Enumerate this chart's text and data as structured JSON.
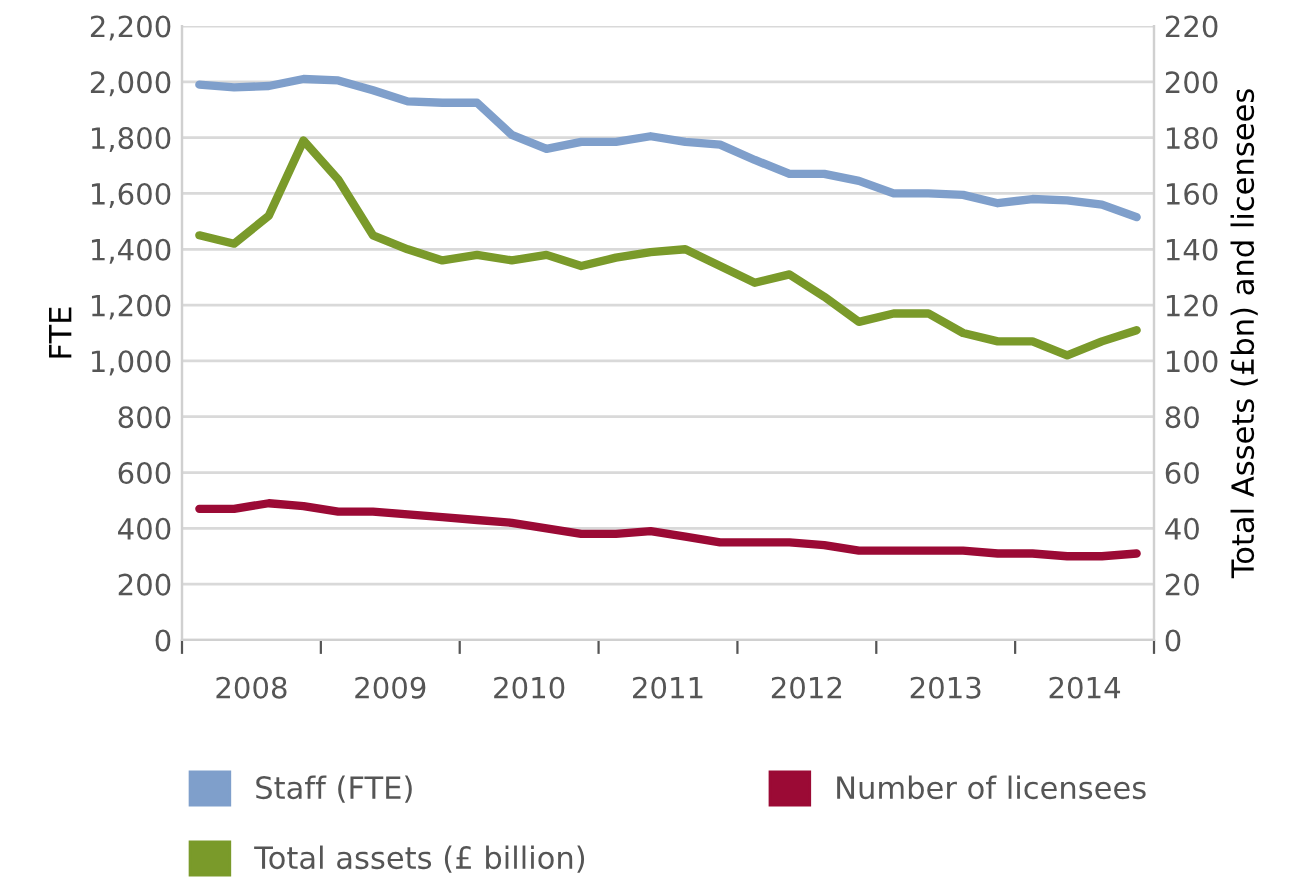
{
  "chart_data": {
    "type": "line",
    "x": [
      2008.125,
      2008.375,
      2008.625,
      2008.875,
      2009.125,
      2009.375,
      2009.625,
      2009.875,
      2010.125,
      2010.375,
      2010.625,
      2010.875,
      2011.125,
      2011.375,
      2011.625,
      2011.875,
      2012.125,
      2012.375,
      2012.625,
      2012.875,
      2013.125,
      2013.375,
      2013.625,
      2013.875,
      2014.125,
      2014.375,
      2014.625,
      2014.875
    ],
    "xlim": [
      2008,
      2015
    ],
    "xticks": [
      {
        "value": 2008,
        "label": null
      },
      {
        "value": 2008.5,
        "label": "2008"
      },
      {
        "value": 2009,
        "label": null
      },
      {
        "value": 2009.5,
        "label": "2009"
      },
      {
        "value": 2010,
        "label": null
      },
      {
        "value": 2010.5,
        "label": "2010"
      },
      {
        "value": 2011,
        "label": null
      },
      {
        "value": 2011.5,
        "label": "2011"
      },
      {
        "value": 2012,
        "label": null
      },
      {
        "value": 2012.5,
        "label": "2012"
      },
      {
        "value": 2013,
        "label": null
      },
      {
        "value": 2013.5,
        "label": "2013"
      },
      {
        "value": 2014,
        "label": null
      },
      {
        "value": 2014.5,
        "label": "2014"
      },
      {
        "value": 2015,
        "label": null
      }
    ],
    "series": [
      {
        "name": "Staff (FTE)",
        "color": "#7f9fcb",
        "values": [
          1990,
          1980,
          1985,
          2010,
          2005,
          1970,
          1930,
          1925,
          1925,
          1810,
          1760,
          1785,
          1785,
          1805,
          1785,
          1775,
          1720,
          1670,
          1670,
          1645,
          1600,
          1600,
          1595,
          1565,
          1580,
          1575,
          1560,
          1515
        ]
      },
      {
        "name": "Total assets (£ billion)",
        "color": "#7a9a2a",
        "axis": "y2",
        "values": [
          145,
          142,
          152,
          179,
          165,
          145,
          140,
          136,
          138,
          136,
          138,
          134,
          137,
          139,
          140,
          134,
          128,
          131,
          123,
          114,
          117,
          117,
          110,
          107,
          107,
          102,
          107,
          111
        ]
      },
      {
        "name": "Number of licensees",
        "color": "#9b0a35",
        "axis": "y2",
        "values": [
          47,
          47,
          49,
          48,
          46,
          46,
          45,
          44,
          43,
          42,
          40,
          38,
          38,
          39,
          37,
          35,
          35,
          35,
          34,
          32,
          32,
          32,
          32,
          31,
          31,
          30,
          30,
          31
        ]
      }
    ],
    "ylabel": "FTE",
    "y2label": "Total Assets (£bn) and licensees",
    "ylim": [
      0,
      2200
    ],
    "yticks": [
      0,
      {
        "value": 200,
        "label": "200"
      },
      {
        "value": 400,
        "label": "400"
      },
      {
        "value": 600,
        "label": "600"
      },
      {
        "value": 800,
        "label": "800"
      },
      {
        "value": 1000,
        "label": "1,000"
      },
      {
        "value": 1200,
        "label": "1,200"
      },
      {
        "value": 1400,
        "label": "1,400"
      },
      {
        "value": 1600,
        "label": "1,600"
      },
      {
        "value": 1800,
        "label": "1,800"
      },
      {
        "value": 2000,
        "label": "2,000"
      },
      {
        "value": 2200,
        "label": "2,200"
      }
    ],
    "y2lim": [
      0,
      220
    ],
    "y2ticks": [
      0,
      20,
      40,
      60,
      80,
      100,
      120,
      140,
      160,
      180,
      200,
      220
    ],
    "grid": "y",
    "legend": "bottom",
    "marker": "none",
    "line_style": "solid"
  }
}
